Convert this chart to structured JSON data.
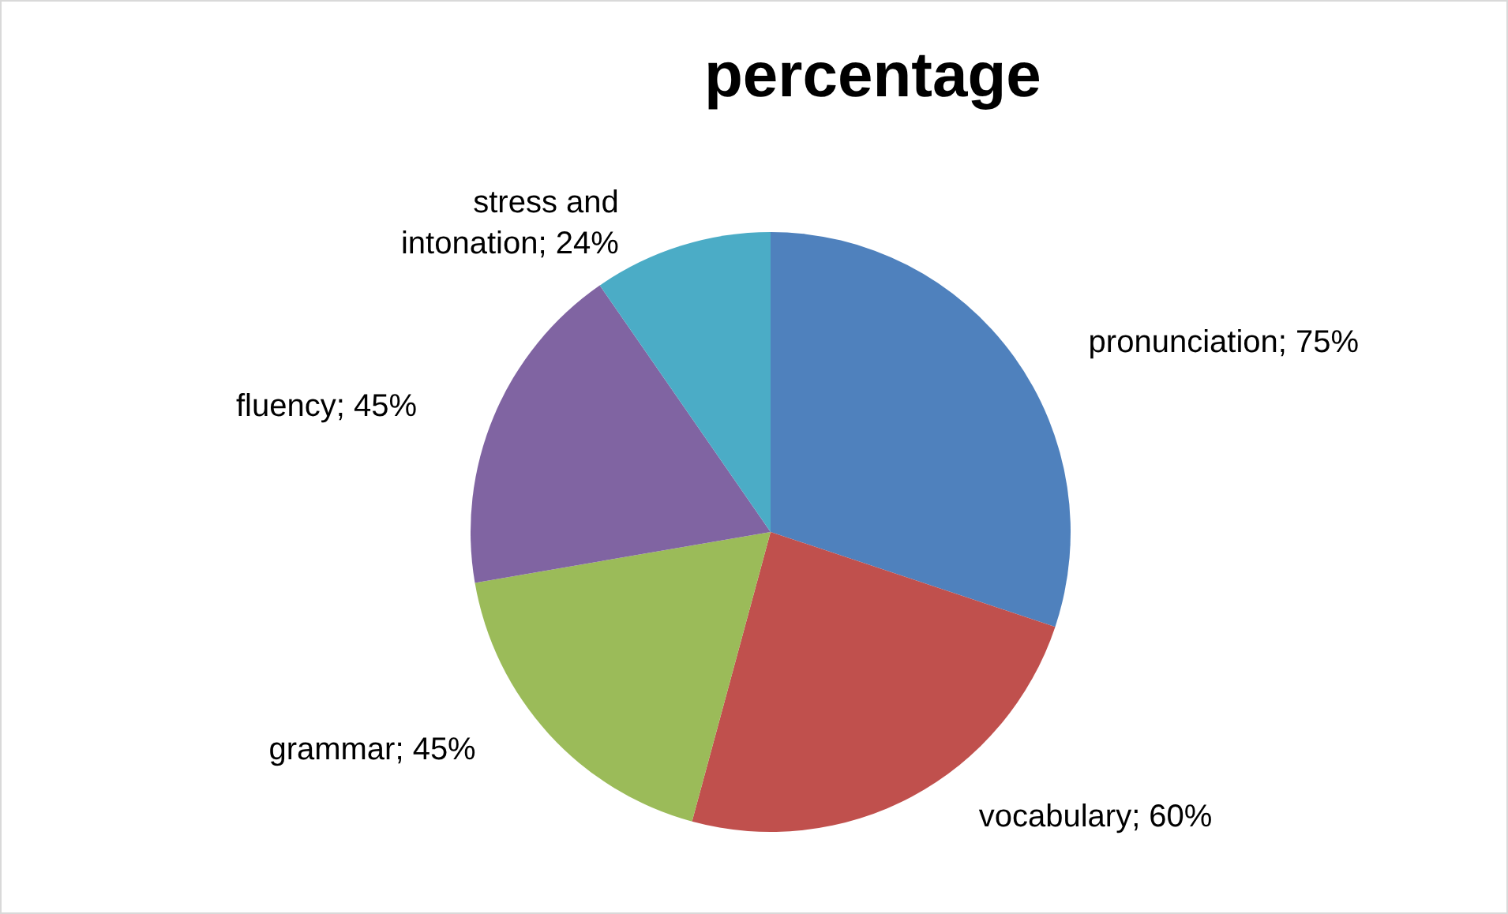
{
  "chart_data": {
    "type": "pie",
    "title": "percentage",
    "categories": [
      "pronunciation",
      "vocabulary",
      "grammar",
      "fluency",
      "stress and intonation"
    ],
    "values": [
      75,
      60,
      45,
      45,
      24
    ],
    "value_labels": [
      "75%",
      "60%",
      "45%",
      "45%",
      "24%"
    ],
    "colors": [
      "#4f81bd",
      "#c0504d",
      "#9bbb59",
      "#8064a2",
      "#4bacc6"
    ],
    "legend": false
  }
}
